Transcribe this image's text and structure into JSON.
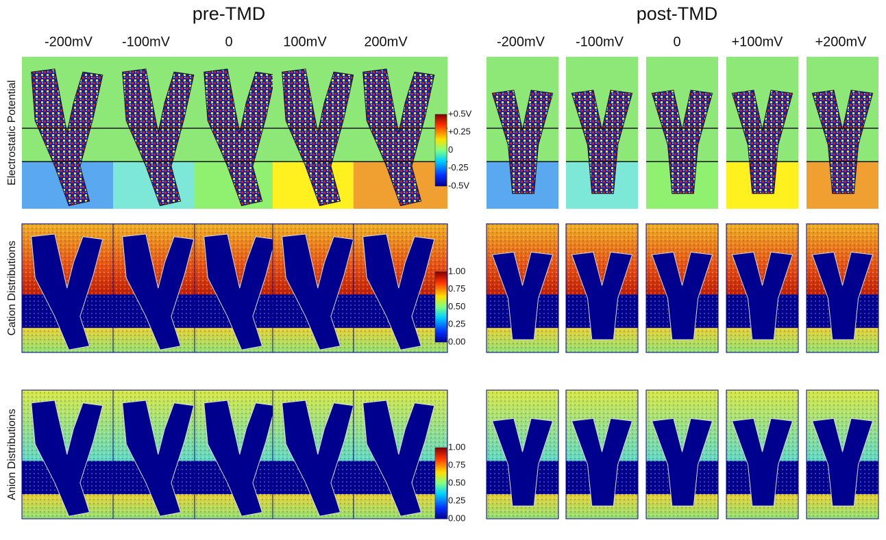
{
  "groups": [
    {
      "title": "pre-TMD",
      "columns": [
        "-200mV",
        "-100mV",
        "0",
        "100mV",
        "200mV"
      ]
    },
    {
      "title": "post-TMD",
      "columns": [
        "-200mV",
        "-100mV",
        "0",
        "+100mV",
        "+200mV"
      ]
    }
  ],
  "rows": [
    "Electrostatic Potential",
    "Cation Distributions",
    "Anion Distributions"
  ],
  "colorbars": [
    [
      "+0.5V",
      "+0.25",
      "0",
      "-0.25",
      "-0.5V"
    ],
    [
      "1.00",
      "0.75",
      "0.50",
      "0.25",
      "0.00"
    ],
    [
      "1.00",
      "0.75",
      "0.50",
      "0.25",
      "0.00"
    ]
  ]
}
